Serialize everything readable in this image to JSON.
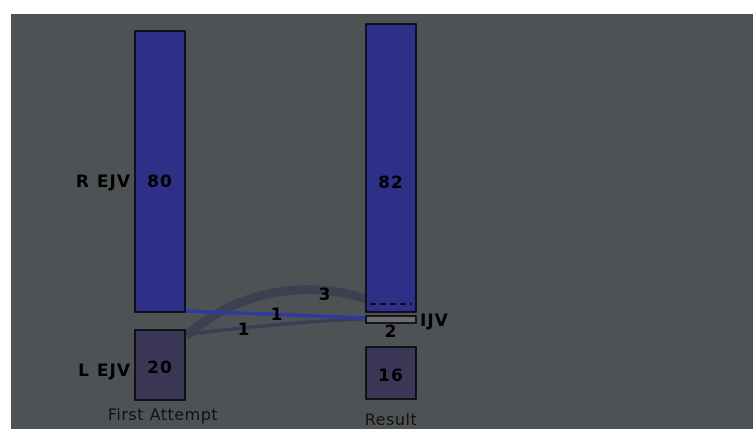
{
  "colors": {
    "background": "#4f5254",
    "ejv_right": "#2e2f86",
    "ejv_left": "#3a3756",
    "flow_blue": "#2f3aa0",
    "flow_gray": "#3c3c52",
    "ijv": "#6a6a70"
  },
  "columns": [
    {
      "label": "First Attempt"
    },
    {
      "label": "Result"
    }
  ],
  "nodes": {
    "first_r_ejv": {
      "label": "R EJV",
      "value": "80"
    },
    "first_l_ejv": {
      "label": "L EJV",
      "value": "20"
    },
    "result_r_ejv": {
      "value": "82"
    },
    "result_ijv": {
      "label": "IJV",
      "value": "2"
    },
    "result_l_ejv": {
      "value": "16"
    }
  },
  "flows": [
    {
      "from": "R EJV",
      "to": "IJV",
      "value": "1"
    },
    {
      "from": "L EJV",
      "to": "IJV",
      "value": "1"
    },
    {
      "from": "L EJV",
      "to": "R EJV",
      "value": "3"
    }
  ]
}
